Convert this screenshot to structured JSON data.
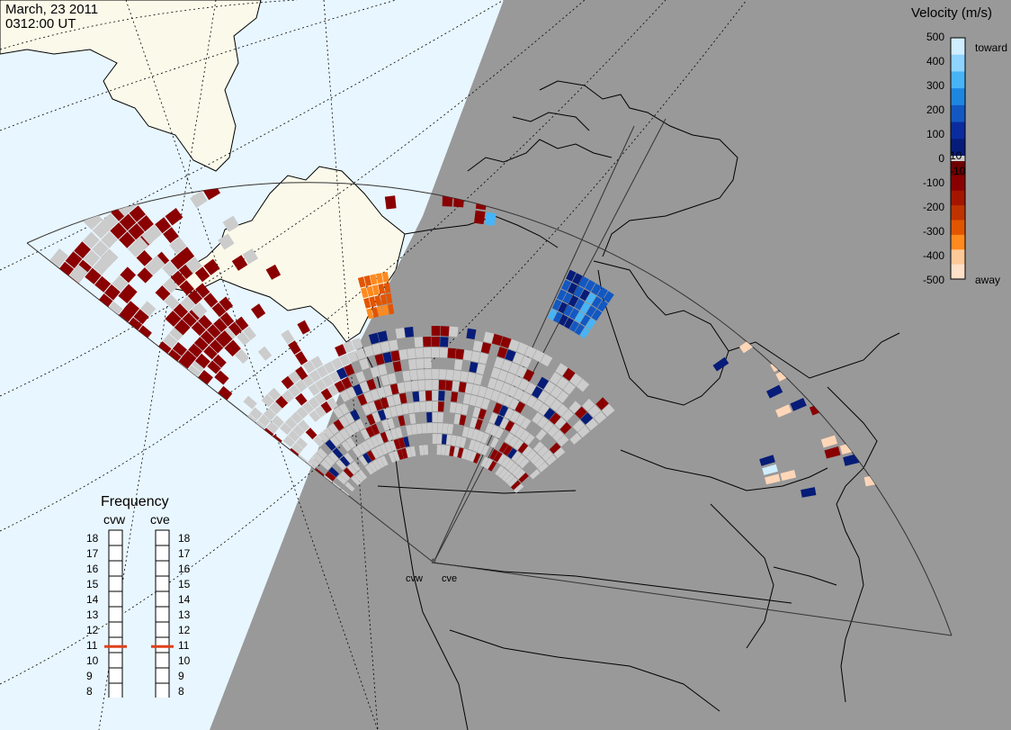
{
  "header": {
    "date": "March, 23 2011",
    "time": "0312:00 UT"
  },
  "colorbar": {
    "title": "Velocity (m/s)",
    "ticks": [
      "500",
      "400",
      "300",
      "200",
      "100",
      "0",
      "-100",
      "-200",
      "-300",
      "-400",
      "-500"
    ],
    "inner_pos_label": "10",
    "inner_neg_label": "-10",
    "toward_label": "toward",
    "away_label": "away",
    "colors_toward": [
      "#cfeeff",
      "#8fd3ff",
      "#47b4f6",
      "#1f86e0",
      "#1358c2",
      "#0a2c9e",
      "#061c78"
    ],
    "colors_away": [
      "#6e0000",
      "#8a0000",
      "#a41500",
      "#c03300",
      "#e25500",
      "#ff8a1e",
      "#ffc898",
      "#ffe0c8"
    ]
  },
  "frequency": {
    "title": "Frequency",
    "radars": [
      "cvw",
      "cve"
    ],
    "scale": [
      "18",
      "17",
      "16",
      "15",
      "14",
      "13",
      "12",
      "11",
      "10",
      "9",
      "8"
    ],
    "cvw_value_mhz": 10.9,
    "cve_value_mhz": 10.9,
    "marker_color": "#e0401a"
  },
  "radars": {
    "west_label": "cvw",
    "east_label": "cve"
  },
  "map_colors": {
    "ocean": "#e8f6ff",
    "land": "#fbfaea",
    "night": "#999999",
    "coastline": "#000000"
  }
}
